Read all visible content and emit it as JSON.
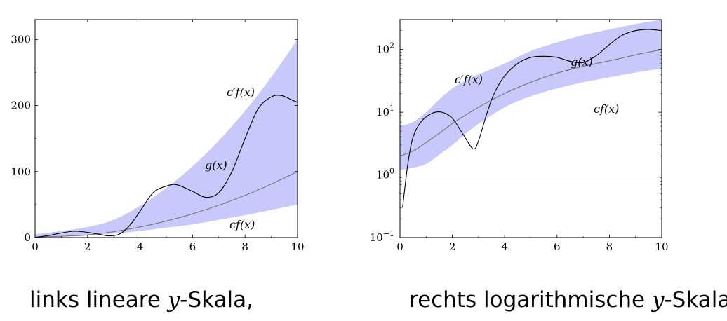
{
  "chart_data": [
    {
      "type": "area",
      "yscale": "linear",
      "xlim": [
        0,
        10
      ],
      "ylim": [
        0,
        330
      ],
      "xticks": [
        "0",
        "2",
        "4",
        "6",
        "8",
        "10"
      ],
      "yticks": [
        "0",
        "100",
        "200",
        "300"
      ],
      "series": [
        {
          "name": "c′f(x)",
          "x": [
            0,
            1,
            2,
            3,
            4,
            5,
            6,
            7,
            8,
            9,
            10
          ],
          "values": [
            5,
            10,
            16,
            27,
            48,
            75,
            108,
            147,
            192,
            243,
            300
          ]
        },
        {
          "name": "cf(x)",
          "x": [
            0,
            1,
            2,
            3,
            4,
            5,
            6,
            7,
            8,
            9,
            10
          ],
          "values": [
            1,
            1.5,
            3,
            6,
            10,
            15,
            20,
            27,
            34,
            42,
            50
          ]
        },
        {
          "name": "f(x)",
          "x": [
            0,
            1,
            2,
            3,
            4,
            5,
            6,
            7,
            8,
            9,
            10
          ],
          "values": [
            1,
            2,
            4,
            9,
            16,
            25,
            36,
            49,
            64,
            81,
            100
          ]
        },
        {
          "name": "g(x)",
          "x": [
            0,
            0.5,
            1,
            1.5,
            2,
            2.5,
            2.8,
            3.2,
            3.6,
            4,
            4.5,
            5,
            5.4,
            6,
            6.5,
            7,
            7.5,
            8,
            8.5,
            9,
            9.4,
            9.8,
            10
          ],
          "values": [
            0.3,
            3,
            7,
            9.5,
            8,
            4.5,
            2.5,
            5,
            18,
            40,
            68,
            78,
            80,
            70,
            61,
            68,
            100,
            150,
            195,
            213,
            215,
            208,
            205
          ]
        }
      ]
    },
    {
      "type": "area",
      "yscale": "log",
      "xlim": [
        0,
        10
      ],
      "ylim": [
        0.1,
        300
      ],
      "xticks": [
        "0",
        "2",
        "4",
        "6",
        "8",
        "10"
      ],
      "series": [
        {
          "name": "c′f(x)",
          "x": [
            0,
            0.5,
            1,
            1.5,
            2,
            2.5,
            3,
            4,
            5,
            6,
            7,
            8,
            9,
            10
          ],
          "values": [
            6,
            7,
            10,
            16,
            24,
            32,
            40,
            60,
            95,
            130,
            170,
            210,
            255,
            300
          ]
        },
        {
          "name": "cf(x)",
          "x": [
            0,
            0.5,
            1,
            1.5,
            2,
            2.5,
            3,
            4,
            5,
            6,
            7,
            8,
            9,
            10
          ],
          "values": [
            1.2,
            1.3,
            1.5,
            2.1,
            3,
            4.5,
            6.5,
            12,
            18,
            24,
            30,
            36,
            43,
            50
          ]
        },
        {
          "name": "f(x)",
          "x": [
            0,
            0.5,
            1,
            1.5,
            2,
            2.5,
            3,
            4,
            5,
            6,
            7,
            8,
            9,
            10
          ],
          "values": [
            2,
            2.4,
            3.3,
            4.6,
            6.6,
            9,
            12,
            20,
            30,
            42,
            54,
            66,
            82,
            100
          ]
        },
        {
          "name": "g(x)",
          "x": [
            0.1,
            0.3,
            0.5,
            0.8,
            1.2,
            1.6,
            2,
            2.4,
            2.8,
            3,
            3.3,
            3.6,
            4,
            4.5,
            5,
            5.5,
            6,
            6.5,
            7,
            7.5,
            8,
            8.5,
            9,
            9.5,
            10
          ],
          "values": [
            0.3,
            1.5,
            4,
            7,
            9.5,
            10,
            8,
            4.5,
            2.6,
            3.5,
            9,
            20,
            38,
            60,
            75,
            78,
            75,
            65,
            62,
            80,
            120,
            170,
            200,
            210,
            200
          ]
        }
      ]
    }
  ],
  "captions": {
    "left_pre": "links lineare ",
    "left_var": "y",
    "left_post": "-Skala,",
    "right_pre": "rechts logarithmische ",
    "right_var": "y",
    "right_post": "-Skala"
  },
  "labels": {
    "left": {
      "cprime": "c′f(x)",
      "g": "g(x)",
      "c": "cf(x)"
    },
    "right": {
      "cprime": "c′f(x)",
      "g": "g(x)",
      "c": "cf(x)"
    }
  },
  "log_ticks": [
    {
      "base": "10",
      "exp": "−1"
    },
    {
      "base": "10",
      "exp": "0"
    },
    {
      "base": "10",
      "exp": "1"
    },
    {
      "base": "10",
      "exp": "2"
    }
  ],
  "colors": {
    "band": "#c8c8fa",
    "g_line": "#000000",
    "f_line": "#6e6e6e",
    "axis": "#000000"
  }
}
